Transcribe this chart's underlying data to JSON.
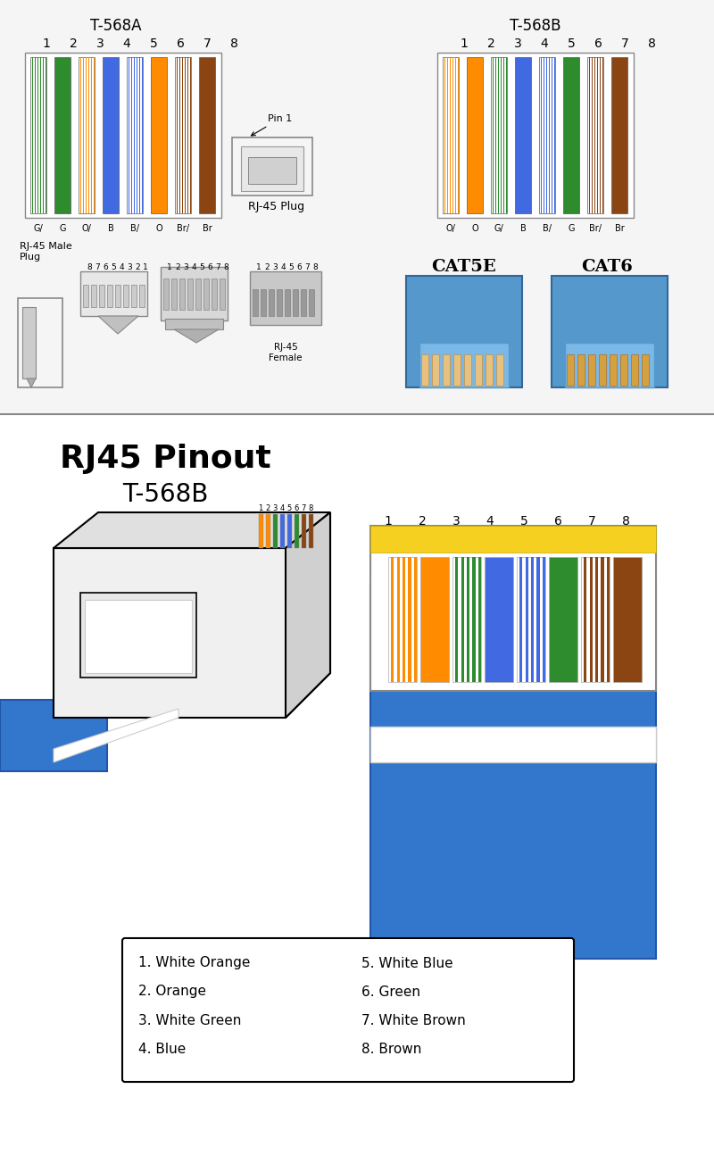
{
  "bg_color": "#f0f0f0",
  "title_main": "RJ45 Pinout",
  "title_sub": "T-568B",
  "t568a_label": "T-568A",
  "t568b_label": "T-568B",
  "t568a_bottom_labels": [
    "G/",
    "G",
    "O/",
    "B",
    "B/",
    "O",
    "Br/",
    "Br"
  ],
  "t568b_bottom_labels": [
    "O/",
    "O",
    "G/",
    "B",
    "B/",
    "G",
    "Br/",
    "Br"
  ],
  "t568a_wire_colors": [
    [
      "#ffffff",
      "#2e8b2e"
    ],
    [
      "#2e8b2e",
      "#2e8b2e"
    ],
    [
      "#ffffff",
      "#ff8c00"
    ],
    [
      "#4169e1",
      "#4169e1"
    ],
    [
      "#ffffff",
      "#4169e1"
    ],
    [
      "#ff8c00",
      "#ff8c00"
    ],
    [
      "#ffffff",
      "#8b4513"
    ],
    [
      "#8b4513",
      "#8b4513"
    ]
  ],
  "t568b_wire_colors": [
    [
      "#ffffff",
      "#ff8c00"
    ],
    [
      "#ff8c00",
      "#ff8c00"
    ],
    [
      "#ffffff",
      "#2e8b2e"
    ],
    [
      "#4169e1",
      "#4169e1"
    ],
    [
      "#ffffff",
      "#4169e1"
    ],
    [
      "#2e8b2e",
      "#2e8b2e"
    ],
    [
      "#ffffff",
      "#8b4513"
    ],
    [
      "#8b4513",
      "#8b4513"
    ]
  ],
  "pinout_wire_colors": [
    "#ff8c00",
    "#ff8c00",
    "#2e8b2e",
    "#4169e1",
    "#4169e1",
    "#2e8b2e",
    "#8b4513",
    "#8b4513"
  ],
  "pinout_wire_striped": [
    true,
    false,
    true,
    false,
    true,
    false,
    true,
    false
  ],
  "pinout_labels": [
    "1. White Orange",
    "2. Orange",
    "3. White Green",
    "4. Blue",
    "5. White Blue",
    "6. Green",
    "7. White Brown",
    "8. Brown"
  ],
  "cat5e_label": "CAT5E",
  "cat6_label": "CAT6"
}
